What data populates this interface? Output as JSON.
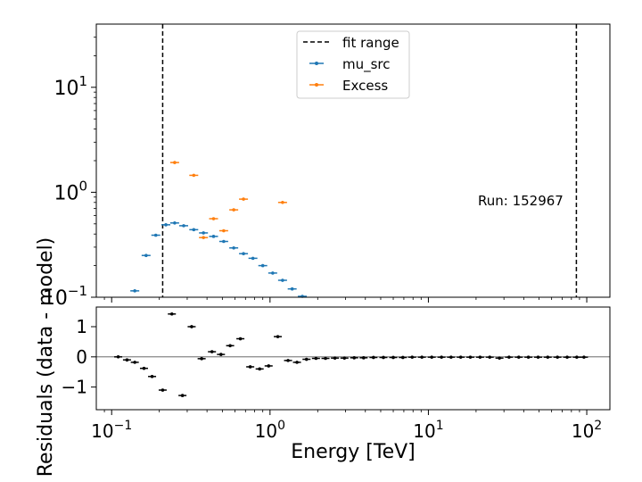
{
  "chart_data": [
    {
      "type": "scatter",
      "panel": "spectrum",
      "xscale": "log",
      "yscale": "log",
      "xlim": [
        0.08,
        140
      ],
      "ylim": [
        0.1,
        40
      ],
      "x_ticks": [
        {
          "value": 0.1,
          "base": "10",
          "exp": "−1"
        },
        {
          "value": 1,
          "base": "10",
          "exp": "0"
        },
        {
          "value": 10,
          "base": "10",
          "exp": "1"
        },
        {
          "value": 100,
          "base": "10",
          "exp": "2"
        }
      ],
      "y_ticks": [
        {
          "value": 0.1,
          "base": "10",
          "exp": "−1"
        },
        {
          "value": 1,
          "base": "10",
          "exp": "0"
        },
        {
          "value": 10,
          "base": "10",
          "exp": "1"
        }
      ],
      "vlines": {
        "name": "fit range",
        "x": [
          0.21,
          86
        ],
        "color": "#000000",
        "style": "dashed"
      },
      "legend": {
        "placement": "upper center"
      },
      "series": [
        {
          "name": "mu_src",
          "color": "#1f77b4",
          "x": [
            0.14,
            0.165,
            0.19,
            0.22,
            0.25,
            0.285,
            0.33,
            0.38,
            0.44,
            0.51,
            0.59,
            0.68,
            0.78,
            0.9,
            1.04,
            1.2,
            1.38,
            1.6
          ],
          "y": [
            0.115,
            0.25,
            0.39,
            0.49,
            0.51,
            0.48,
            0.44,
            0.41,
            0.38,
            0.34,
            0.295,
            0.26,
            0.235,
            0.2,
            0.17,
            0.145,
            0.12,
            0.102
          ]
        },
        {
          "name": "Excess",
          "color": "#ff7f0e",
          "x": [
            0.25,
            0.33,
            0.38,
            0.44,
            0.51,
            0.59,
            0.68,
            1.2
          ],
          "y": [
            1.92,
            1.45,
            0.37,
            0.56,
            0.43,
            0.68,
            0.86,
            0.8
          ]
        }
      ],
      "annotation": "Run: 152967"
    },
    {
      "type": "scatter",
      "panel": "residuals",
      "xscale": "log",
      "xlim": [
        0.08,
        140
      ],
      "ylim": [
        -1.75,
        1.65
      ],
      "xlabel": "Energy [TeV]",
      "ylabel": "Residuals (data - model)",
      "y_ticks": [
        "1",
        "0",
        "−1"
      ],
      "y_tick_values": [
        1,
        0,
        -1
      ],
      "zero_line": true,
      "series": [
        {
          "color": "#000000",
          "x": [
            0.11,
            0.125,
            0.14,
            0.16,
            0.18,
            0.21,
            0.24,
            0.28,
            0.32,
            0.37,
            0.43,
            0.49,
            0.56,
            0.65,
            0.75,
            0.86,
            0.98,
            1.12,
            1.3,
            1.48,
            1.7,
            1.95,
            2.24,
            2.57,
            2.95,
            3.4,
            3.9,
            4.5,
            5.2,
            6.0,
            6.9,
            7.9,
            9.1,
            10.5,
            12.1,
            13.9,
            16.0,
            18.4,
            21.2,
            24.4,
            28.1,
            32.3,
            37.2,
            42.8,
            49.3,
            56.7,
            65.3,
            75.2,
            86.5,
            96
          ],
          "y": [
            0,
            -0.1,
            -0.18,
            -0.38,
            -0.65,
            -1.1,
            1.42,
            -1.28,
            1.0,
            -0.06,
            0.17,
            0.08,
            0.37,
            0.6,
            -0.33,
            -0.4,
            -0.3,
            0.67,
            -0.12,
            -0.18,
            -0.08,
            -0.05,
            -0.05,
            -0.04,
            -0.04,
            -0.03,
            -0.03,
            -0.02,
            -0.02,
            -0.02,
            -0.02,
            -0.01,
            -0.01,
            -0.01,
            -0.01,
            -0.01,
            -0.01,
            -0.01,
            -0.01,
            -0.01,
            -0.04,
            -0.01,
            -0.01,
            -0.01,
            -0.01,
            -0.01,
            -0.01,
            -0.01,
            -0.01,
            -0.01
          ]
        }
      ]
    }
  ]
}
